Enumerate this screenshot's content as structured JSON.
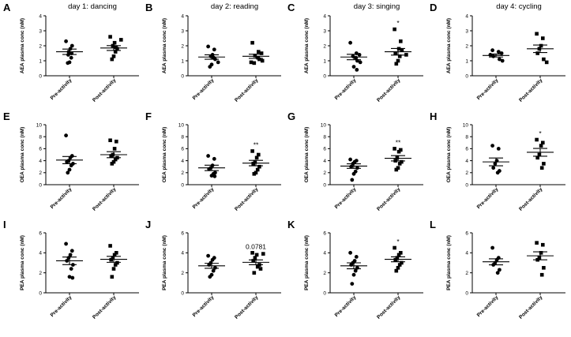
{
  "chart_data": [
    {
      "panel": "A",
      "title": "day 1: dancing",
      "type": "scatter",
      "ylabel": "AEA plasma conc (nM)",
      "yticks": [
        0,
        1,
        2,
        3,
        4
      ],
      "ylim": [
        0,
        4
      ],
      "categories": [
        "Pre-activity",
        "Post-activity"
      ],
      "series": [
        {
          "values": [
            2.3,
            2.0,
            1.8,
            1.6,
            1.5,
            1.4,
            1.2,
            0.9,
            0.85
          ],
          "mean": 1.6,
          "sem": 0.18
        },
        {
          "values": [
            2.6,
            2.4,
            2.2,
            2.0,
            1.9,
            1.8,
            1.6,
            1.3,
            1.1
          ],
          "mean": 1.85,
          "sem": 0.16
        }
      ],
      "annotation": ""
    },
    {
      "panel": "B",
      "title": "day 2: reading",
      "type": "scatter",
      "ylabel": "AEA plasma conc (nM)",
      "yticks": [
        0,
        1,
        2,
        3,
        4
      ],
      "ylim": [
        0,
        4
      ],
      "categories": [
        "Pre-activity",
        "Post-activity"
      ],
      "series": [
        {
          "values": [
            1.95,
            1.75,
            1.4,
            1.3,
            1.2,
            1.1,
            0.9,
            0.75,
            0.6
          ],
          "mean": 1.25,
          "sem": 0.15
        },
        {
          "values": [
            2.2,
            1.6,
            1.5,
            1.35,
            1.2,
            1.1,
            1.0,
            0.9,
            0.85
          ],
          "mean": 1.3,
          "sem": 0.14
        }
      ],
      "annotation": ""
    },
    {
      "panel": "C",
      "title": "day 3: singing",
      "type": "scatter",
      "ylabel": "AEA plasma conc (nM)",
      "yticks": [
        0,
        1,
        2,
        3,
        4
      ],
      "ylim": [
        0,
        4
      ],
      "categories": [
        "Pre-activity",
        "Post-activity"
      ],
      "series": [
        {
          "values": [
            2.2,
            1.5,
            1.4,
            1.3,
            1.2,
            1.0,
            0.9,
            0.6,
            0.4
          ],
          "mean": 1.25,
          "sem": 0.18
        },
        {
          "values": [
            3.1,
            2.3,
            1.8,
            1.7,
            1.5,
            1.4,
            1.3,
            1.0,
            0.8
          ],
          "mean": 1.6,
          "sem": 0.22
        }
      ],
      "annotation": "*"
    },
    {
      "panel": "D",
      "title": "day 4: cycling",
      "type": "scatter",
      "ylabel": "AEA plasma conc (nM)",
      "yticks": [
        0,
        1,
        2,
        3,
        4
      ],
      "ylim": [
        0,
        4
      ],
      "categories": [
        "Pre-activity",
        "Post-activity"
      ],
      "series": [
        {
          "values": [
            1.7,
            1.6,
            1.5,
            1.4,
            1.3,
            1.1,
            1.0
          ],
          "mean": 1.35,
          "sem": 0.1
        },
        {
          "values": [
            2.8,
            2.5,
            2.0,
            1.8,
            1.5,
            1.1,
            0.9
          ],
          "mean": 1.8,
          "sem": 0.25
        }
      ],
      "annotation": ""
    },
    {
      "panel": "E",
      "title": "",
      "type": "scatter",
      "ylabel": "OEA plasma conc (nM)",
      "yticks": [
        0,
        2,
        4,
        6,
        8,
        10
      ],
      "ylim": [
        0,
        10
      ],
      "categories": [
        "Pre-activity",
        "Post-activity"
      ],
      "series": [
        {
          "values": [
            8.2,
            4.8,
            4.5,
            4.0,
            3.8,
            3.5,
            3.2,
            2.5,
            2.0
          ],
          "mean": 4.1,
          "sem": 0.6
        },
        {
          "values": [
            7.4,
            7.2,
            6.0,
            5.0,
            4.8,
            4.5,
            4.2,
            3.8,
            3.5
          ],
          "mean": 5.0,
          "sem": 0.5
        }
      ],
      "annotation": ""
    },
    {
      "panel": "F",
      "title": "",
      "type": "scatter",
      "ylabel": "OEA plasma conc (nM)",
      "yticks": [
        0,
        2,
        4,
        6,
        8,
        10
      ],
      "ylim": [
        0,
        10
      ],
      "categories": [
        "Pre-activity",
        "Post-activity"
      ],
      "series": [
        {
          "values": [
            4.8,
            4.3,
            3.2,
            2.8,
            2.6,
            2.0,
            1.8,
            1.5,
            1.4
          ],
          "mean": 2.8,
          "sem": 0.45
        },
        {
          "values": [
            5.6,
            5.0,
            4.5,
            3.8,
            3.5,
            3.0,
            2.5,
            2.0,
            1.8
          ],
          "mean": 3.6,
          "sem": 0.45
        }
      ],
      "annotation": "**"
    },
    {
      "panel": "G",
      "title": "",
      "type": "scatter",
      "ylabel": "OEA plasma conc (nM)",
      "yticks": [
        0,
        2,
        4,
        6,
        8,
        10
      ],
      "ylim": [
        0,
        10
      ],
      "categories": [
        "Pre-activity",
        "Post-activity"
      ],
      "series": [
        {
          "values": [
            4.2,
            4.0,
            3.8,
            3.5,
            3.0,
            2.8,
            2.2,
            1.8,
            0.8
          ],
          "mean": 3.1,
          "sem": 0.38
        },
        {
          "values": [
            6.0,
            5.8,
            5.5,
            4.5,
            4.0,
            3.8,
            3.5,
            2.8,
            2.5
          ],
          "mean": 4.4,
          "sem": 0.45
        }
      ],
      "annotation": "**"
    },
    {
      "panel": "H",
      "title": "",
      "type": "scatter",
      "ylabel": "OEA plasma conc (nM)",
      "yticks": [
        0,
        2,
        4,
        6,
        8,
        10
      ],
      "ylim": [
        0,
        10
      ],
      "categories": [
        "Pre-activity",
        "Post-activity"
      ],
      "series": [
        {
          "values": [
            6.5,
            6.0,
            4.0,
            3.5,
            2.8,
            2.3,
            2.0
          ],
          "mean": 3.8,
          "sem": 0.65
        },
        {
          "values": [
            7.5,
            7.0,
            6.5,
            5.0,
            4.5,
            3.5,
            2.8
          ],
          "mean": 5.4,
          "sem": 0.65
        }
      ],
      "annotation": "*"
    },
    {
      "panel": "I",
      "title": "",
      "type": "scatter",
      "ylabel": "PEA plasma conc (nM)",
      "yticks": [
        0,
        2,
        4,
        6
      ],
      "ylim": [
        0,
        6
      ],
      "categories": [
        "Pre-activity",
        "Post-activity"
      ],
      "series": [
        {
          "values": [
            4.9,
            4.2,
            3.8,
            3.5,
            3.2,
            2.8,
            2.4,
            1.6,
            1.5
          ],
          "mean": 3.2,
          "sem": 0.38
        },
        {
          "values": [
            4.7,
            4.0,
            3.8,
            3.5,
            3.3,
            3.0,
            2.8,
            2.4,
            1.6
          ],
          "mean": 3.35,
          "sem": 0.3
        }
      ],
      "annotation": ""
    },
    {
      "panel": "J",
      "title": "",
      "type": "scatter",
      "ylabel": "PEA plasma conc (nM)",
      "yticks": [
        0,
        2,
        4,
        6
      ],
      "ylim": [
        0,
        6
      ],
      "categories": [
        "Pre-activity",
        "Post-activity"
      ],
      "series": [
        {
          "values": [
            3.7,
            3.5,
            3.3,
            3.0,
            2.8,
            2.5,
            2.2,
            1.8,
            1.6
          ],
          "mean": 2.7,
          "sem": 0.25
        },
        {
          "values": [
            4.0,
            3.9,
            3.8,
            3.5,
            3.2,
            2.8,
            2.6,
            2.4,
            2.0
          ],
          "mean": 3.05,
          "sem": 0.24
        }
      ],
      "annotation": "0.0781"
    },
    {
      "panel": "K",
      "title": "",
      "type": "scatter",
      "ylabel": "PEA plasma conc (nM)",
      "yticks": [
        0,
        2,
        4,
        6
      ],
      "ylim": [
        0,
        6
      ],
      "categories": [
        "Pre-activity",
        "Post-activity"
      ],
      "series": [
        {
          "values": [
            4.0,
            3.6,
            3.2,
            3.0,
            2.8,
            2.5,
            2.2,
            1.8,
            0.9
          ],
          "mean": 2.7,
          "sem": 0.3
        },
        {
          "values": [
            4.5,
            4.0,
            3.8,
            3.5,
            3.3,
            3.0,
            2.8,
            2.5,
            2.2
          ],
          "mean": 3.35,
          "sem": 0.25
        }
      ],
      "annotation": "*"
    },
    {
      "panel": "L",
      "title": "",
      "type": "scatter",
      "ylabel": "PEA plasma conc (nM)",
      "yticks": [
        0,
        2,
        4,
        6
      ],
      "ylim": [
        0,
        6
      ],
      "categories": [
        "Pre-activity",
        "Post-activity"
      ],
      "series": [
        {
          "values": [
            4.5,
            3.5,
            3.3,
            3.0,
            2.8,
            2.3,
            2.0
          ],
          "mean": 3.1,
          "sem": 0.3
        },
        {
          "values": [
            5.0,
            4.8,
            4.0,
            3.5,
            3.3,
            2.5,
            1.8
          ],
          "mean": 3.7,
          "sem": 0.4
        }
      ],
      "annotation": ""
    }
  ]
}
